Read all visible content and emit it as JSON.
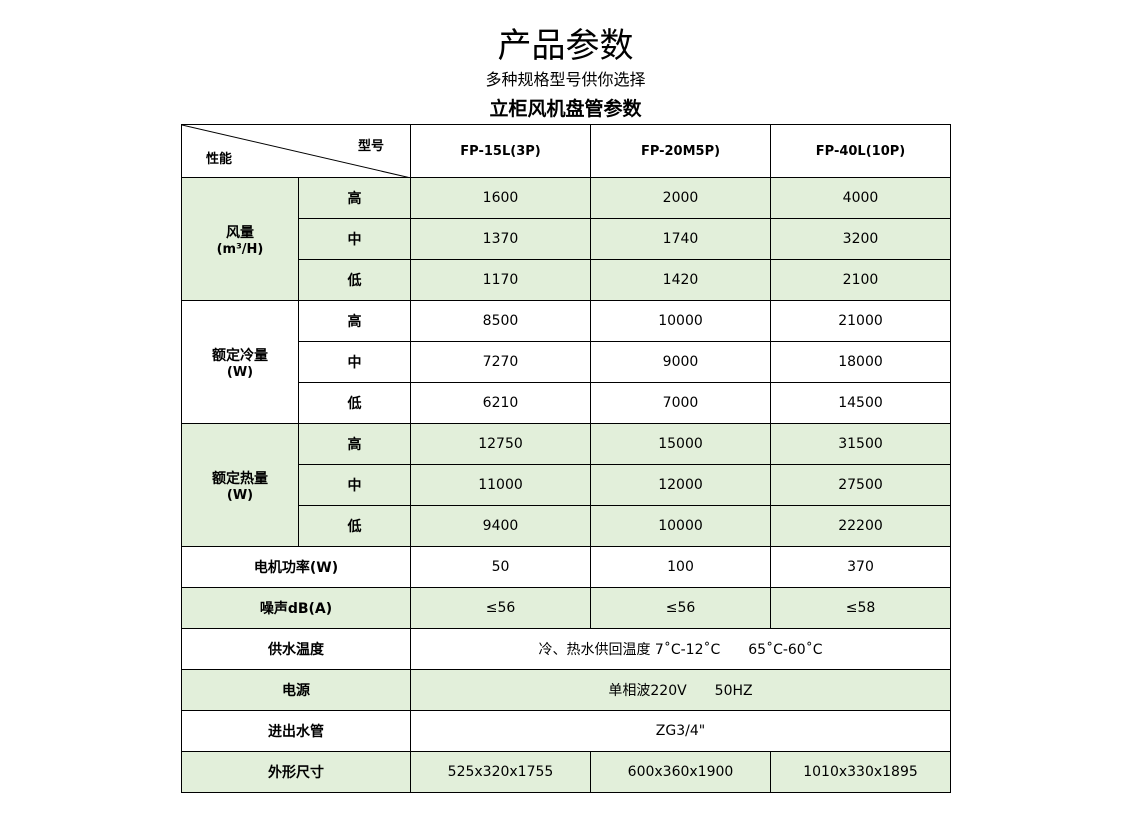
{
  "title": "产品参数",
  "subtitle": "多种规格型号供你选择",
  "table_title": "立柜风机盘管参数",
  "header": {
    "model_label": "型号",
    "perf_label": "性能",
    "models": [
      "FP-15L(3P)",
      "FP-20M5P)",
      "FP-40L(10P)"
    ]
  },
  "groups": [
    {
      "label": "风量",
      "unit": "(m³/H)",
      "rows": [
        {
          "level": "高",
          "values": [
            "1600",
            "2000",
            "4000"
          ]
        },
        {
          "level": "中",
          "values": [
            "1370",
            "1740",
            "3200"
          ]
        },
        {
          "level": "低",
          "values": [
            "1170",
            "1420",
            "2100"
          ]
        }
      ]
    },
    {
      "label": "额定冷量",
      "unit": "(W)",
      "rows": [
        {
          "level": "高",
          "values": [
            "8500",
            "10000",
            "21000"
          ]
        },
        {
          "level": "中",
          "values": [
            "7270",
            "9000",
            "18000"
          ]
        },
        {
          "level": "低",
          "values": [
            "6210",
            "7000",
            "14500"
          ]
        }
      ]
    },
    {
      "label": "额定热量",
      "unit": "(W)",
      "rows": [
        {
          "level": "高",
          "values": [
            "12750",
            "15000",
            "31500"
          ]
        },
        {
          "level": "中",
          "values": [
            "11000",
            "12000",
            "27500"
          ]
        },
        {
          "level": "低",
          "values": [
            "9400",
            "10000",
            "22200"
          ]
        }
      ]
    }
  ],
  "motor": {
    "label": "电机功率(W)",
    "values": [
      "50",
      "100",
      "370"
    ]
  },
  "noise": {
    "label": "噪声dB(A)",
    "values": [
      "≤56",
      "≤56",
      "≤58"
    ]
  },
  "water_temp": {
    "label": "供水温度",
    "value": "冷、热水供回温度 7˚C-12˚C　　65˚C-60˚C"
  },
  "power": {
    "label": "电源",
    "value": "单相波220V　　50HZ"
  },
  "pipe": {
    "label": "进出水管",
    "value": "ZG3/4\""
  },
  "size": {
    "label": "外形尺寸",
    "values": [
      "525x320x1755",
      "600x360x1900",
      "1010x330x1895"
    ]
  },
  "colors": {
    "green_row": "#e2efda"
  }
}
